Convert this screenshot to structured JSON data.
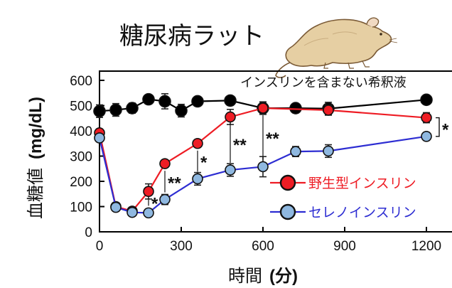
{
  "chart_data": {
    "type": "line",
    "title": "糖尿病ラット",
    "xlabel_main": "時間",
    "xlabel_unit": "(分)",
    "ylabel_main": "血糖値",
    "ylabel_unit": "(mg/dL)",
    "xlim": [
      0,
      1200
    ],
    "ylim": [
      0,
      600
    ],
    "xticks": [
      0,
      300,
      600,
      900,
      1200
    ],
    "yticks": [
      0,
      100,
      200,
      300,
      400,
      500,
      600
    ],
    "grid": false,
    "legend_placement": "right",
    "series": [
      {
        "name": "インスリンを含まない希釈液",
        "color": "#000000",
        "line_color": "#000000",
        "x": [
          0,
          60,
          120,
          180,
          240,
          300,
          360,
          480,
          600,
          720,
          840,
          1200
        ],
        "y": [
          478,
          483,
          490,
          525,
          517,
          480,
          517,
          520,
          490,
          490,
          488,
          523
        ],
        "err": [
          25,
          25,
          20,
          15,
          30,
          25,
          15,
          10,
          20,
          10,
          25,
          10
        ]
      },
      {
        "name": "野生型インスリン",
        "color": "#ee1c24",
        "line_color": "#ee1c24",
        "x": [
          0,
          60,
          120,
          180,
          240,
          360,
          480,
          600,
          840,
          1200
        ],
        "y": [
          392,
          100,
          82,
          160,
          270,
          350,
          455,
          490,
          482,
          452
        ],
        "err": [
          10,
          10,
          10,
          30,
          10,
          10,
          30,
          25,
          20,
          20
        ]
      },
      {
        "name": "セレノインスリン",
        "color": "#8fb8e0",
        "line_color": "#2d2dd2",
        "x": [
          0,
          60,
          120,
          180,
          240,
          360,
          480,
          600,
          720,
          840,
          1200
        ],
        "y": [
          372,
          97,
          77,
          75,
          128,
          210,
          245,
          258,
          318,
          320,
          378
        ],
        "err": [
          10,
          15,
          10,
          15,
          20,
          25,
          25,
          40,
          20,
          25,
          15
        ]
      }
    ],
    "significance": [
      {
        "x": 180,
        "label": "*"
      },
      {
        "x": 240,
        "label": "**"
      },
      {
        "x": 360,
        "label": "*"
      },
      {
        "x": 480,
        "label": "**"
      },
      {
        "x": 600,
        "label": "**"
      },
      {
        "x": 1200,
        "label": "*"
      }
    ]
  }
}
